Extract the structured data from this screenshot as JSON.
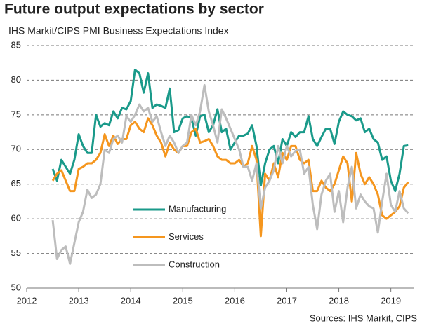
{
  "chart_data": {
    "type": "line",
    "title": "Future output expectations by sector",
    "subtitle": "IHS Markit/CIPS PMI Business Expectations Index",
    "source": "Sources: IHS Markit, CIPS",
    "x": [
      2012.5,
      2012.583,
      2012.667,
      2012.75,
      2012.833,
      2012.917,
      2013,
      2013.083,
      2013.167,
      2013.25,
      2013.333,
      2013.417,
      2013.5,
      2013.583,
      2013.667,
      2013.75,
      2013.833,
      2013.917,
      2014,
      2014.083,
      2014.167,
      2014.25,
      2014.333,
      2014.417,
      2014.5,
      2014.583,
      2014.667,
      2014.75,
      2014.833,
      2014.917,
      2015,
      2015.083,
      2015.167,
      2015.25,
      2015.333,
      2015.417,
      2015.5,
      2015.583,
      2015.667,
      2015.75,
      2015.833,
      2015.917,
      2016,
      2016.083,
      2016.167,
      2016.25,
      2016.333,
      2016.417,
      2016.5,
      2016.583,
      2016.667,
      2016.75,
      2016.833,
      2016.917,
      2017,
      2017.083,
      2017.167,
      2017.25,
      2017.333,
      2017.417,
      2017.5,
      2017.583,
      2017.667,
      2017.75,
      2017.833,
      2017.917,
      2018,
      2018.083,
      2018.167,
      2018.25,
      2018.333,
      2018.417,
      2018.5,
      2018.583,
      2018.667,
      2018.75,
      2018.833,
      2018.917,
      2019,
      2019.083,
      2019.167,
      2019.25,
      2019.333
    ],
    "xlim": [
      2012,
      2019.45
    ],
    "xticks": [
      2012,
      2013,
      2014,
      2015,
      2016,
      2017,
      2018,
      2019
    ],
    "ylim": [
      50,
      85
    ],
    "yticks": [
      50,
      55,
      60,
      65,
      70,
      75,
      80,
      85
    ],
    "grid": true,
    "legend": "center",
    "series": [
      {
        "name": "Manufacturing",
        "color": "#1a9a8a",
        "values": [
          67.2,
          65.5,
          68.5,
          67.5,
          66.5,
          68.5,
          72.2,
          70.5,
          69.5,
          69.5,
          75.0,
          73.3,
          73.8,
          73.5,
          75.5,
          74.5,
          76.0,
          75.8,
          77.0,
          81.5,
          81.0,
          78.2,
          81.0,
          76.0,
          76.5,
          76.3,
          76.0,
          78.8,
          72.5,
          72.8,
          74.5,
          74.8,
          74.5,
          72.0,
          74.8,
          75.0,
          72.5,
          73.5,
          75.8,
          72.5,
          73.0,
          70.0,
          71.0,
          72.0,
          72.0,
          72.3,
          73.5,
          70.5,
          64.8,
          68.0,
          70.0,
          70.5,
          68.0,
          71.5,
          70.5,
          72.5,
          71.8,
          72.5,
          72.5,
          74.8,
          71.5,
          70.5,
          71.8,
          73.0,
          73.0,
          70.8,
          74.0,
          75.5,
          75.0,
          74.8,
          74.2,
          74.5,
          72.5,
          73.0,
          71.5,
          71.0,
          68.5,
          69.0,
          65.5,
          64.0,
          66.5,
          70.5,
          70.6
        ]
      },
      {
        "name": "Services",
        "color": "#f5961e",
        "values": [
          65.5,
          66.5,
          67.0,
          65.5,
          64.0,
          64.0,
          67.2,
          67.5,
          68.0,
          68.0,
          68.5,
          69.5,
          72.2,
          70.5,
          72.0,
          70.8,
          71.5,
          71.5,
          73.5,
          74.0,
          73.0,
          72.5,
          74.5,
          73.5,
          72.0,
          71.0,
          69.0,
          71.0,
          70.0,
          69.5,
          70.5,
          70.5,
          72.5,
          73.0,
          71.0,
          71.2,
          71.5,
          70.5,
          69.0,
          68.5,
          68.5,
          68.0,
          68.0,
          68.5,
          67.5,
          68.0,
          70.5,
          68.5,
          57.5,
          66.5,
          65.5,
          68.0,
          66.0,
          69.5,
          68.5,
          70.5,
          70.5,
          68.5,
          68.0,
          68.5,
          64.0,
          64.0,
          65.5,
          64.5,
          64.0,
          65.0,
          67.0,
          69.0,
          68.0,
          62.5,
          69.5,
          66.5,
          65.0,
          66.0,
          65.0,
          63.5,
          60.5,
          60.0,
          60.5,
          61.0,
          61.8,
          64.5,
          65.3
        ]
      },
      {
        "name": "Construction",
        "color": "#bdbdbd",
        "values": [
          59.8,
          54.2,
          55.5,
          56.0,
          53.5,
          56.5,
          59.5,
          61.0,
          64.2,
          63.0,
          63.5,
          65.0,
          70.0,
          69.5,
          71.5,
          72.0,
          71.0,
          74.8,
          74.0,
          75.0,
          76.5,
          75.5,
          76.0,
          74.0,
          74.8,
          72.5,
          70.5,
          72.0,
          71.0,
          69.5,
          70.5,
          71.0,
          75.0,
          73.5,
          75.5,
          79.3,
          75.5,
          73.5,
          71.0,
          75.8,
          74.5,
          73.0,
          71.5,
          70.0,
          67.5,
          67.5,
          65.5,
          68.0,
          61.5,
          64.5,
          65.5,
          67.0,
          70.5,
          68.0,
          70.5,
          69.0,
          69.8,
          70.0,
          66.5,
          67.5,
          62.0,
          58.5,
          63.5,
          65.5,
          66.5,
          61.0,
          64.0,
          59.5,
          64.5,
          67.5,
          61.5,
          63.5,
          62.5,
          61.8,
          61.5,
          58.0,
          62.5,
          66.5,
          62.0,
          61.0,
          64.0,
          61.5,
          60.8
        ]
      }
    ]
  }
}
